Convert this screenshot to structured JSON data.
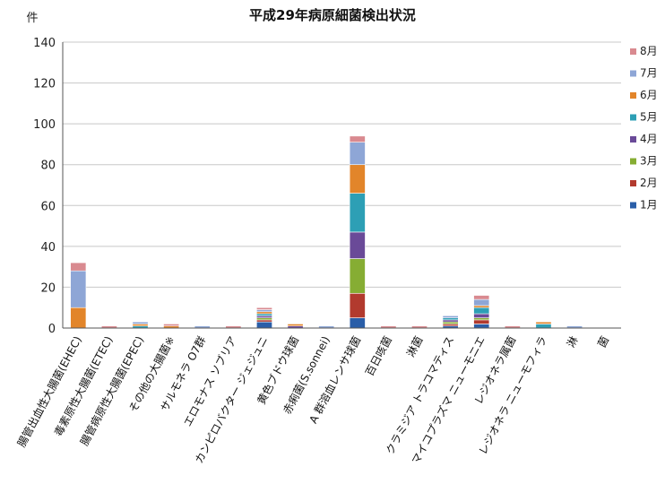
{
  "chart_data": {
    "type": "bar",
    "stacked": true,
    "title": "平成29年病原細菌検出状況",
    "ylabel": "件",
    "ylim": [
      0,
      140
    ],
    "yticks": [
      0,
      20,
      40,
      60,
      80,
      100,
      120,
      140
    ],
    "grid": true,
    "legend_position": "right",
    "categories": [
      "腸管出血性大腸菌(EHEC)",
      "毒素原性大腸菌(ETEC)",
      "腸管病原性大腸菌(EPEC)",
      "その他の大腸菌※",
      "サルモネラ O7群",
      "エロモナス ソブリア",
      "カンピロバクター ジェジュニ",
      "黄色ブドウ球菌",
      "赤痢菌(S.sonnei)",
      "A 群溶血レンサ球菌",
      "百日咳菌",
      "淋菌",
      "クラミジア トラコマティス",
      "マイコプラズマ ニューモニエ",
      "レジオネラ属菌",
      "レジオネラ ニューモフィラ",
      "淋",
      "菌"
    ],
    "series": [
      {
        "name": "1月",
        "color": "#2a5ea8",
        "values": [
          0,
          0,
          0,
          0,
          0,
          0,
          3,
          0,
          0,
          5,
          0,
          0,
          1,
          2,
          0,
          0,
          0,
          0
        ]
      },
      {
        "name": "2月",
        "color": "#b23a2e",
        "values": [
          0,
          0,
          0,
          0,
          0,
          0,
          1,
          0,
          0,
          12,
          0,
          0,
          1,
          2,
          0,
          0,
          0,
          0
        ]
      },
      {
        "name": "3月",
        "color": "#86ad33",
        "values": [
          0,
          0,
          0,
          0,
          0,
          0,
          1,
          0,
          0,
          17,
          0,
          0,
          1,
          1,
          0,
          0,
          0,
          0
        ]
      },
      {
        "name": "4月",
        "color": "#6a4a98",
        "values": [
          0,
          0,
          0,
          0,
          0,
          0,
          1,
          1,
          0,
          13,
          0,
          0,
          1,
          2,
          0,
          0,
          0,
          0
        ]
      },
      {
        "name": "5月",
        "color": "#2d9fb5",
        "values": [
          0,
          0,
          1,
          0,
          0,
          0,
          1,
          0,
          0,
          19,
          0,
          0,
          1,
          3,
          0,
          2,
          0,
          0
        ]
      },
      {
        "name": "6月",
        "color": "#e2852a",
        "values": [
          10,
          0,
          1,
          1,
          0,
          0,
          1,
          1,
          0,
          14,
          0,
          0,
          0,
          1,
          0,
          1,
          0,
          0
        ]
      },
      {
        "name": "7月",
        "color": "#8ea6d6",
        "values": [
          18,
          0,
          1,
          0,
          1,
          0,
          1,
          0,
          1,
          11,
          0,
          0,
          1,
          3,
          0,
          0,
          1,
          0
        ]
      },
      {
        "name": "8月",
        "color": "#d98a90",
        "values": [
          4,
          1,
          0,
          1,
          0,
          1,
          1,
          0,
          0,
          3,
          1,
          1,
          0,
          2,
          1,
          0,
          0,
          0
        ]
      }
    ]
  }
}
